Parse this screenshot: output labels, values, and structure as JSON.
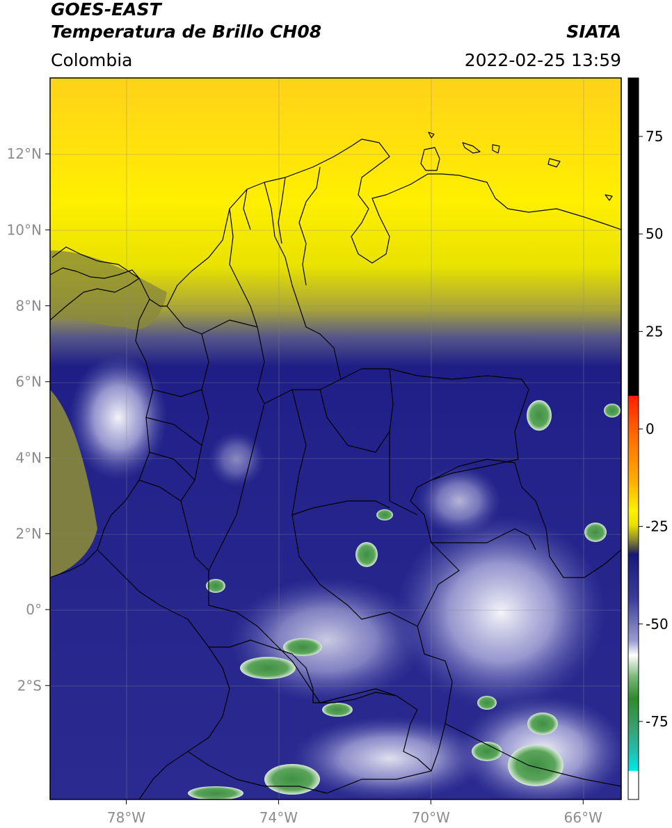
{
  "header": {
    "satellite": "GOES-EAST",
    "product": "Temperatura de Brillo CH08",
    "agency": "SIATA",
    "region": "Colombia",
    "timestamp": "2022-02-25 13:59"
  },
  "map": {
    "lon_range": [
      -80,
      -65
    ],
    "lat_range": [
      -5,
      14
    ],
    "lon_ticks": [
      -78,
      -74,
      -70,
      -66
    ],
    "lon_labels": [
      "78°W",
      "74°W",
      "70°W",
      "66°W"
    ],
    "lat_ticks": [
      12,
      10,
      8,
      6,
      4,
      2,
      0,
      -2
    ],
    "lat_labels": [
      "12°N",
      "10°N",
      "8°N",
      "6°N",
      "4°N",
      "2°N",
      "0°",
      "2°S"
    ]
  },
  "colorbar": {
    "range": [
      -95,
      90
    ],
    "ticks": [
      75,
      50,
      25,
      0,
      -25,
      -50,
      -75
    ],
    "tick_labels": [
      "75",
      "50",
      "25",
      "0",
      "-25",
      "-50",
      "-75"
    ],
    "colors": {
      "warm": "#000000",
      "red": "#ff2a00",
      "orange": "#ff9900",
      "yellow": "#fff200",
      "olive": "#6b6b2a",
      "navy": "#1a1a80",
      "lavender": "#b8b8e0",
      "white": "#ffffff",
      "green": "#2e8b2e",
      "teal": "#20b2aa",
      "cyan": "#00e5e5"
    }
  }
}
